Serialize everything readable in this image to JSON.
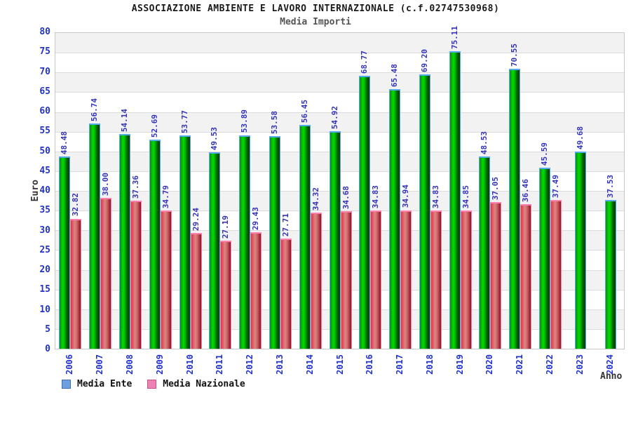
{
  "header": {
    "title": "ASSOCIAZIONE AMBIENTE E LAVORO INTERNAZIONALE (c.f.02747530968)",
    "subtitle": "Media Importi"
  },
  "chart_data": {
    "type": "bar",
    "title": "ASSOCIAZIONE AMBIENTE E LAVORO INTERNAZIONALE (c.f.02747530968)",
    "subtitle": "Media Importi",
    "xlabel": "Anno",
    "ylabel": "Euro",
    "y_min": 0,
    "y_max": 80,
    "y_step": 5,
    "grid": "alternating-horizontal-bands",
    "legend_position": "bottom-left",
    "categories": [
      "2006",
      "2007",
      "2008",
      "2009",
      "2010",
      "2011",
      "2012",
      "2013",
      "2014",
      "2015",
      "2016",
      "2017",
      "2018",
      "2019",
      "2020",
      "2021",
      "2022",
      "2023",
      "2024"
    ],
    "series": [
      {
        "name": "Media Ente",
        "key": "ente",
        "values": [
          48.48,
          56.74,
          54.14,
          52.69,
          53.77,
          49.53,
          53.89,
          53.58,
          56.45,
          54.92,
          68.77,
          65.48,
          69.2,
          75.11,
          48.53,
          70.55,
          45.59,
          49.68,
          37.53
        ]
      },
      {
        "name": "Media Nazionale",
        "key": "naz",
        "values": [
          32.82,
          38.0,
          37.36,
          34.79,
          29.24,
          27.19,
          29.43,
          27.71,
          34.32,
          34.68,
          34.83,
          34.94,
          34.83,
          34.85,
          37.05,
          36.46,
          37.49,
          null,
          null
        ]
      }
    ]
  },
  "colors": {
    "title_text": "#1a1a1a",
    "subtitle_text": "#555555",
    "tick_text": "#2233cc",
    "value_label": "#3333bb",
    "axis_title_text": "#333333",
    "band_gray": "#f2f2f2",
    "band_line": "#dcdcdc",
    "plot_border": "#c9c9c9",
    "ente_bar": "#00cc00",
    "ente_cap": "#55aaee",
    "naz_bar": "#dd6666",
    "naz_cap": "#ff7fae",
    "ente_legend_fill": "#6e9fe0",
    "ente_legend_border": "#3f6fae",
    "naz_legend_fill": "#ee82b4",
    "naz_legend_border": "#c2538c"
  }
}
